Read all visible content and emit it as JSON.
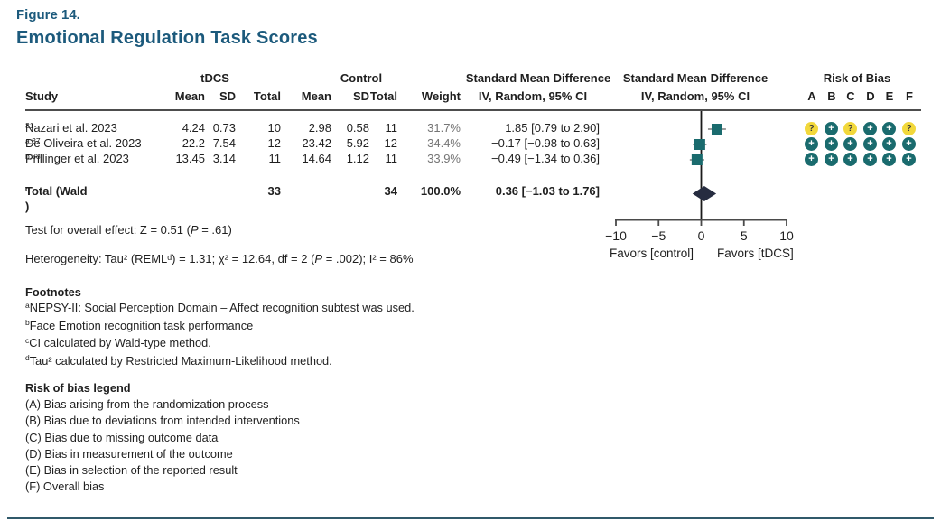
{
  "figure": {
    "label": "Figure 14.",
    "title": "Emotional Regulation Task Scores"
  },
  "table": {
    "group_headers": {
      "tdcs": "tDCS",
      "control": "Control",
      "smd_text": "Standard Mean Difference",
      "smd_plot": "Standard Mean Difference",
      "rob": "Risk of Bias"
    },
    "col_headers": {
      "study": "Study",
      "mean": "Mean",
      "sd": "SD",
      "total": "Total",
      "weight": "Weight",
      "iv_random": "IV, Random, 95% CI",
      "rob_letters": [
        "A",
        "B",
        "C",
        "D",
        "E",
        "F"
      ]
    },
    "studies": [
      {
        "name": "Nazari et al. 2023",
        "sup": "31",
        "mean_t": "4.24",
        "sd_t": "0.73",
        "n_t": "10",
        "mean_c": "2.98",
        "sd_c": "0.58",
        "n_c": "11",
        "weight": "31.7%",
        "smd": "1.85 [0.79 to 2.90]",
        "rob": [
          "?",
          "+",
          "?",
          "+",
          "+",
          "?"
        ]
      },
      {
        "name": "De Oliveira et al. 2023",
        "sup": "a,37",
        "mean_t": "22.2",
        "sd_t": "7.54",
        "n_t": "12",
        "mean_c": "23.42",
        "sd_c": "5.92",
        "n_c": "12",
        "weight": "34.4%",
        "smd": "−0.17 [−0.98 to 0.63]",
        "rob": [
          "+",
          "+",
          "+",
          "+",
          "+",
          "+"
        ]
      },
      {
        "name": "Prillinger et al. 2023",
        "sup": "b,38",
        "mean_t": "13.45",
        "sd_t": "3.14",
        "n_t": "11",
        "mean_c": "14.64",
        "sd_c": "1.12",
        "n_c": "11",
        "weight": "33.9%",
        "smd": "−0.49 [−1.34 to 0.36]",
        "rob": [
          "+",
          "+",
          "+",
          "+",
          "+",
          "+"
        ]
      }
    ],
    "total": {
      "label_pre": "Total (Wald",
      "label_sup": "c",
      "label_post": ")",
      "n_t": "33",
      "n_c": "34",
      "weight": "100.0%",
      "smd": "0.36 [−1.03 to 1.76]"
    }
  },
  "stats": {
    "effect_pre": "Test for overall effect: Z = 0.51 (",
    "effect_p": "P",
    "effect_post": " = .61)",
    "het_pre": "Heterogeneity: Tau² (REMLᵈ) = 1.31; χ² = 12.64, df = 2 (",
    "het_p": "P",
    "het_post": " = .002); I² = 86%"
  },
  "axis": {
    "favors_left": "Favors [control]",
    "favors_right": "Favors [tDCS]"
  },
  "footnotes": {
    "title": "Footnotes",
    "items": [
      {
        "sup": "a",
        "text": "NEPSY-II: Social Perception Domain – Affect recognition subtest was used."
      },
      {
        "sup": "b",
        "text": "Face Emotion recognition task performance"
      },
      {
        "sup": "c",
        "text": "CI calculated by Wald-type method."
      },
      {
        "sup": "d",
        "text": "Tau² calculated by Restricted Maximum-Likelihood method."
      }
    ]
  },
  "rob_legend": {
    "title": "Risk of bias legend",
    "items": [
      "(A) Bias arising from the randomization process",
      "(B) Bias due to deviations from intended interventions",
      "(C) Bias due to missing outcome data",
      "(D) Bias in measurement of the outcome",
      "(E) Bias in selection of the reported result",
      "(F) Overall bias"
    ]
  },
  "chart_data": {
    "type": "scatter",
    "subtype": "forest-plot",
    "title": "Emotional Regulation Task Scores",
    "x_axis": {
      "min": -10,
      "max": 10,
      "ticks": [
        -10,
        -5,
        0,
        5,
        10
      ],
      "tick_labels": [
        "−10",
        "−5",
        "0",
        "5",
        "10"
      ],
      "label_left": "Favors [control]",
      "label_right": "Favors [tDCS]"
    },
    "studies": [
      {
        "name": "Nazari et al. 2023",
        "estimate": 1.85,
        "ci_low": 0.79,
        "ci_high": 2.9,
        "weight_pct": 31.7
      },
      {
        "name": "De Oliveira et al. 2023",
        "estimate": -0.17,
        "ci_low": -0.98,
        "ci_high": 0.63,
        "weight_pct": 34.4
      },
      {
        "name": "Prillinger et al. 2023",
        "estimate": -0.49,
        "ci_low": -1.34,
        "ci_high": 0.36,
        "weight_pct": 33.9
      }
    ],
    "total": {
      "estimate": 0.36,
      "ci_low": -1.03,
      "ci_high": 1.76,
      "weight_pct": 100.0
    }
  },
  "colors": {
    "accent_teal": "#1a6b6e",
    "rob_yellow": "#f2d83b",
    "diamond_navy": "#262c40",
    "title_blue": "#1c5a7c",
    "rule_blue": "#30596a",
    "weight_gray": "#757575",
    "axis_gray": "#4a4a4a",
    "ci_gray": "#7d7d7d"
  }
}
